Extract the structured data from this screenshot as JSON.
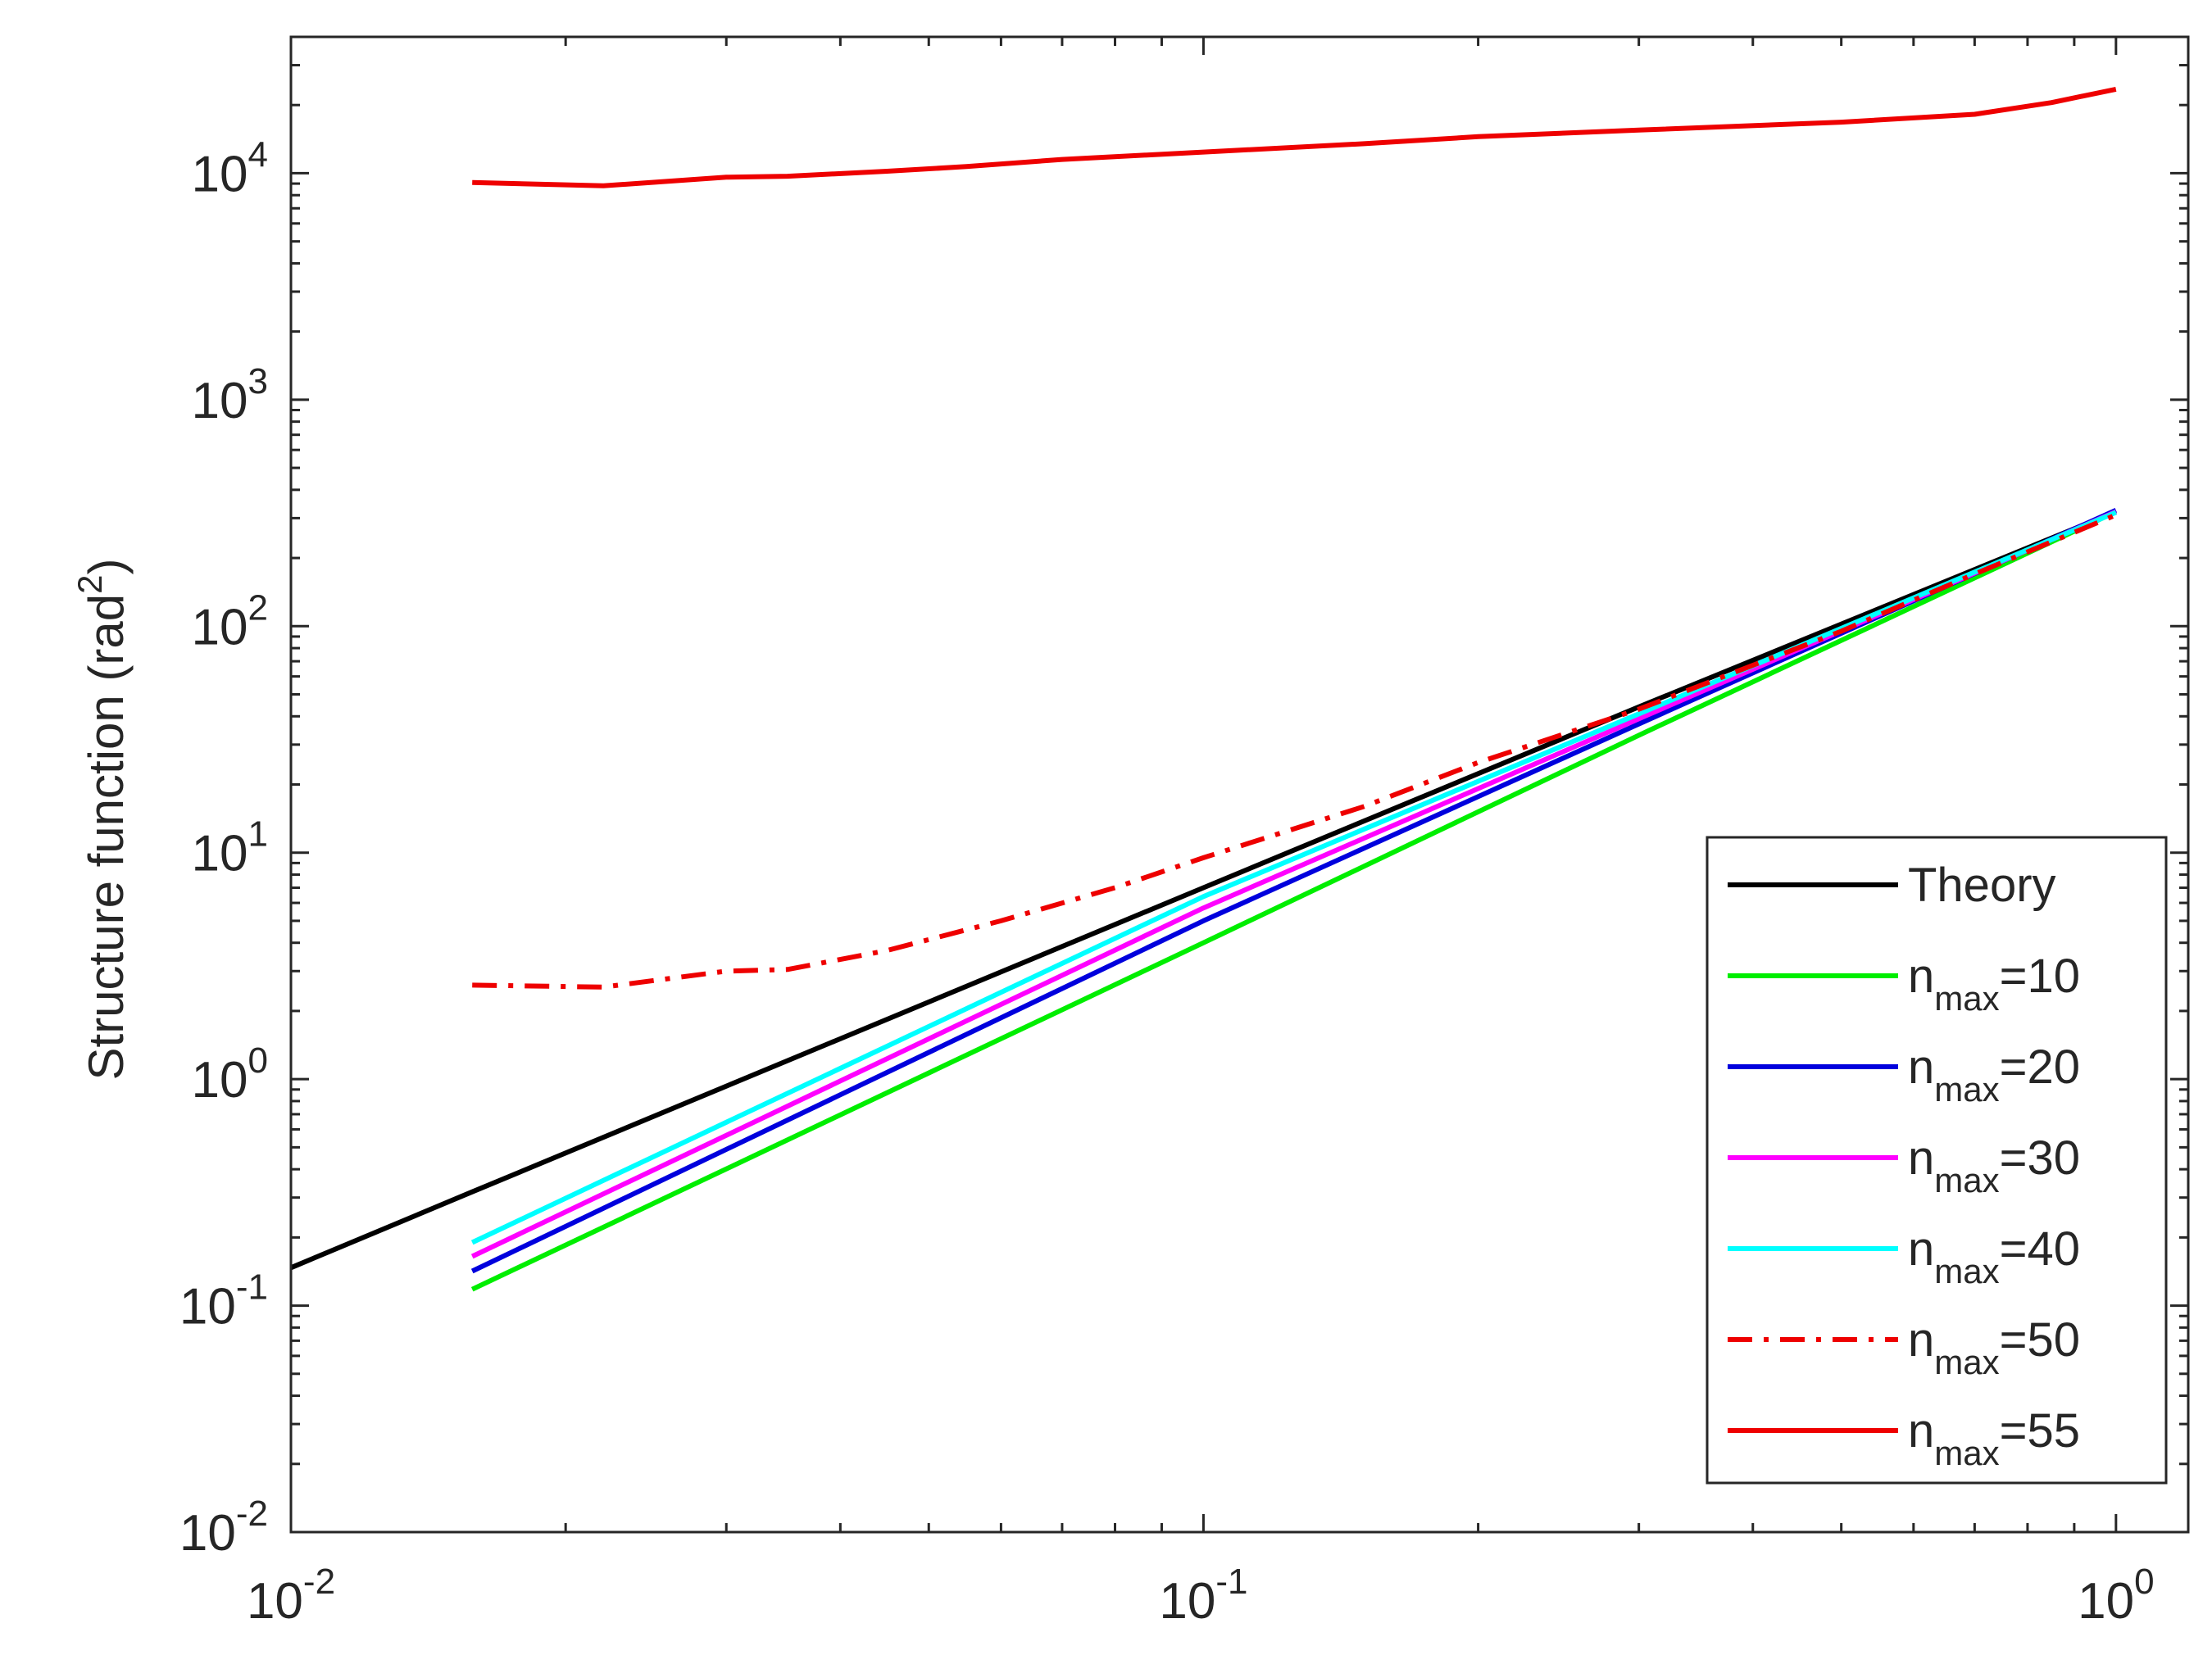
{
  "chart_data": {
    "type": "line",
    "xscale": "log",
    "yscale": "log",
    "xlim": [
      0.01,
      1.2
    ],
    "ylim": [
      0.01,
      40000
    ],
    "xlabel": "",
    "ylabel": "Structure function (rad²)",
    "ylabel_main": "Structure function (rad",
    "ylabel_sup": "2",
    "ylabel_end": ")",
    "x_ticks": [
      {
        "value": 0.01,
        "base": "10",
        "exp": "-2"
      },
      {
        "value": 0.1,
        "base": "10",
        "exp": "-1"
      },
      {
        "value": 1,
        "base": "10",
        "exp": "0"
      }
    ],
    "y_ticks": [
      {
        "value": 0.01,
        "base": "10",
        "exp": "-2"
      },
      {
        "value": 0.1,
        "base": "10",
        "exp": "-1"
      },
      {
        "value": 1,
        "base": "10",
        "exp": "0"
      },
      {
        "value": 10,
        "base": "10",
        "exp": "1"
      },
      {
        "value": 100,
        "base": "10",
        "exp": "2"
      },
      {
        "value": 1000,
        "base": "10",
        "exp": "3"
      },
      {
        "value": 10000,
        "base": "10",
        "exp": "4"
      }
    ],
    "legend_position": "bottom-right",
    "series": [
      {
        "name": "Theory",
        "label_main": "Theory",
        "label_sub": "",
        "label_end": "",
        "color": "#000000",
        "dash": "solid",
        "x": [
          0.01,
          0.0158,
          0.1,
          0.3,
          1.0
        ],
        "y": [
          0.147,
          0.318,
          7.0,
          44.0,
          320
        ]
      },
      {
        "name": "n_max=10",
        "label_main": "n",
        "label_sub": "max",
        "label_end": "=10",
        "color": "#00ee00",
        "dash": "solid",
        "x": [
          0.0158,
          0.1,
          0.3,
          1.0
        ],
        "y": [
          0.118,
          4.0,
          33.0,
          320
        ]
      },
      {
        "name": "n_max=20",
        "label_main": "n",
        "label_sub": "max",
        "label_end": "=20",
        "color": "#0000dd",
        "dash": "solid",
        "x": [
          0.0158,
          0.1,
          0.3,
          1.0
        ],
        "y": [
          0.142,
          5.0,
          37.0,
          325
        ]
      },
      {
        "name": "n_max=30",
        "label_main": "n",
        "label_sub": "max",
        "label_end": "=30",
        "color": "#ff00ff",
        "dash": "solid",
        "x": [
          0.0158,
          0.1,
          0.3,
          1.0
        ],
        "y": [
          0.165,
          5.7,
          39.0,
          320
        ]
      },
      {
        "name": "n_max=40",
        "label_main": "n",
        "label_sub": "max",
        "label_end": "=40",
        "color": "#00ffff",
        "dash": "solid",
        "x": [
          0.0158,
          0.1,
          0.3,
          1.0
        ],
        "y": [
          0.19,
          6.4,
          41.0,
          318
        ]
      },
      {
        "name": "n_max=50",
        "label_main": "n",
        "label_sub": "max",
        "label_end": "=50",
        "color": "#ee0000",
        "dash": "dashdot",
        "x": [
          0.0158,
          0.022,
          0.03,
          0.035,
          0.045,
          0.06,
          0.08,
          0.1,
          0.15,
          0.2,
          0.3,
          0.5,
          0.7,
          1.0
        ],
        "y": [
          2.6,
          2.55,
          3.0,
          3.05,
          3.7,
          5.0,
          7.0,
          9.5,
          16.0,
          25.0,
          43.0,
          95.0,
          170.0,
          310.0
        ]
      },
      {
        "name": "n_max=55",
        "label_main": "n",
        "label_sub": "max",
        "label_end": "=55",
        "color": "#ee0000",
        "dash": "solid",
        "x": [
          0.0158,
          0.022,
          0.03,
          0.035,
          0.045,
          0.055,
          0.07,
          0.1,
          0.15,
          0.2,
          0.3,
          0.5,
          0.7,
          0.85,
          1.0
        ],
        "y": [
          9100,
          8800,
          9600,
          9700,
          10200,
          10700,
          11500,
          12400,
          13500,
          14500,
          15500,
          16800,
          18200,
          20500,
          23500
        ]
      }
    ]
  }
}
